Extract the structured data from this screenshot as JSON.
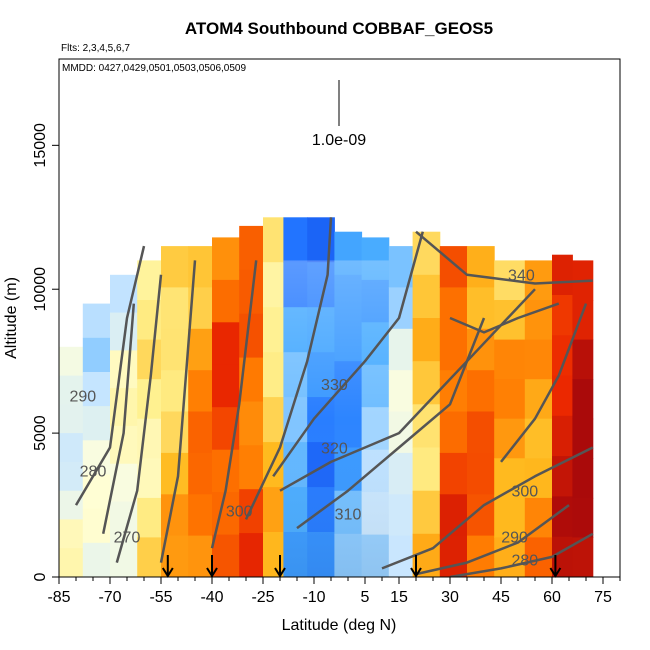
{
  "chart_data": {
    "type": "heatmap",
    "title": "ATOM4 Southbound COBBAF_GEOS5",
    "flights_label": "Flts: 2,3,4,5,6,7",
    "dates_label": "MMDD: 0427,0429,0501,0503,0506,0509",
    "xlabel": "Latitude (deg N)",
    "ylabel": "Altitude (m)",
    "xlim": [
      -85,
      80
    ],
    "ylim": [
      0,
      18000
    ],
    "x_ticks": [
      -85,
      -70,
      -55,
      -40,
      -25,
      -10,
      5,
      15,
      30,
      45,
      60,
      75
    ],
    "y_ticks": [
      0,
      5000,
      10000,
      15000
    ],
    "scale_label": "1.0e-09",
    "profile_markers_lat": [
      -53,
      -40,
      -20,
      20,
      61
    ],
    "contours": [
      {
        "label": "270",
        "lat": -65,
        "alt": 1200
      },
      {
        "label": "280",
        "lat": -75,
        "alt": 3500
      },
      {
        "label": "290",
        "lat": -78,
        "alt": 6100
      },
      {
        "label": "300",
        "lat": -32,
        "alt": 2100
      },
      {
        "label": "310",
        "lat": 0,
        "alt": 2000
      },
      {
        "label": "320",
        "lat": -4,
        "alt": 4300
      },
      {
        "label": "330",
        "lat": -4,
        "alt": 6500
      },
      {
        "label": "340",
        "lat": 51,
        "alt": 10300
      },
      {
        "label": "300",
        "lat": 52,
        "alt": 2800
      },
      {
        "label": "290",
        "lat": 49,
        "alt": 1200
      },
      {
        "label": "280",
        "lat": 52,
        "alt": 400
      }
    ],
    "columns": [
      {
        "lat": [
          -85,
          -78
        ],
        "top": 8000,
        "level": 0.42
      },
      {
        "lat": [
          -78,
          -70
        ],
        "top": 9500,
        "level": 0.4
      },
      {
        "lat": [
          -70,
          -62
        ],
        "top": 10500,
        "level": 0.45
      },
      {
        "lat": [
          -62,
          -55
        ],
        "top": 11000,
        "level": 0.55
      },
      {
        "lat": [
          -55,
          -47
        ],
        "top": 11500,
        "level": 0.62
      },
      {
        "lat": [
          -47,
          -40
        ],
        "top": 11500,
        "level": 0.72
      },
      {
        "lat": [
          -40,
          -32
        ],
        "top": 11800,
        "level": 0.8
      },
      {
        "lat": [
          -32,
          -25
        ],
        "top": 12200,
        "level": 0.78
      },
      {
        "lat": [
          -25,
          -19
        ],
        "top": 12500,
        "level": 0.6
      },
      {
        "lat": [
          -19,
          -12
        ],
        "top": 12500,
        "level": 0.22
      },
      {
        "lat": [
          -12,
          -4
        ],
        "top": 12500,
        "level": 0.15
      },
      {
        "lat": [
          -4,
          4
        ],
        "top": 12000,
        "level": 0.2
      },
      {
        "lat": [
          4,
          12
        ],
        "top": 11800,
        "level": 0.28
      },
      {
        "lat": [
          12,
          19
        ],
        "top": 11500,
        "level": 0.38
      },
      {
        "lat": [
          19,
          27
        ],
        "top": 12000,
        "level": 0.62
      },
      {
        "lat": [
          27,
          35
        ],
        "top": 11500,
        "level": 0.8
      },
      {
        "lat": [
          35,
          43
        ],
        "top": 11500,
        "level": 0.75
      },
      {
        "lat": [
          43,
          52
        ],
        "top": 11000,
        "level": 0.68
      },
      {
        "lat": [
          52,
          60
        ],
        "top": 11000,
        "level": 0.7
      },
      {
        "lat": [
          60,
          66
        ],
        "top": 11200,
        "level": 0.9
      },
      {
        "lat": [
          66,
          72
        ],
        "top": 11000,
        "level": 0.98
      }
    ],
    "grid": false,
    "legend": "none"
  }
}
